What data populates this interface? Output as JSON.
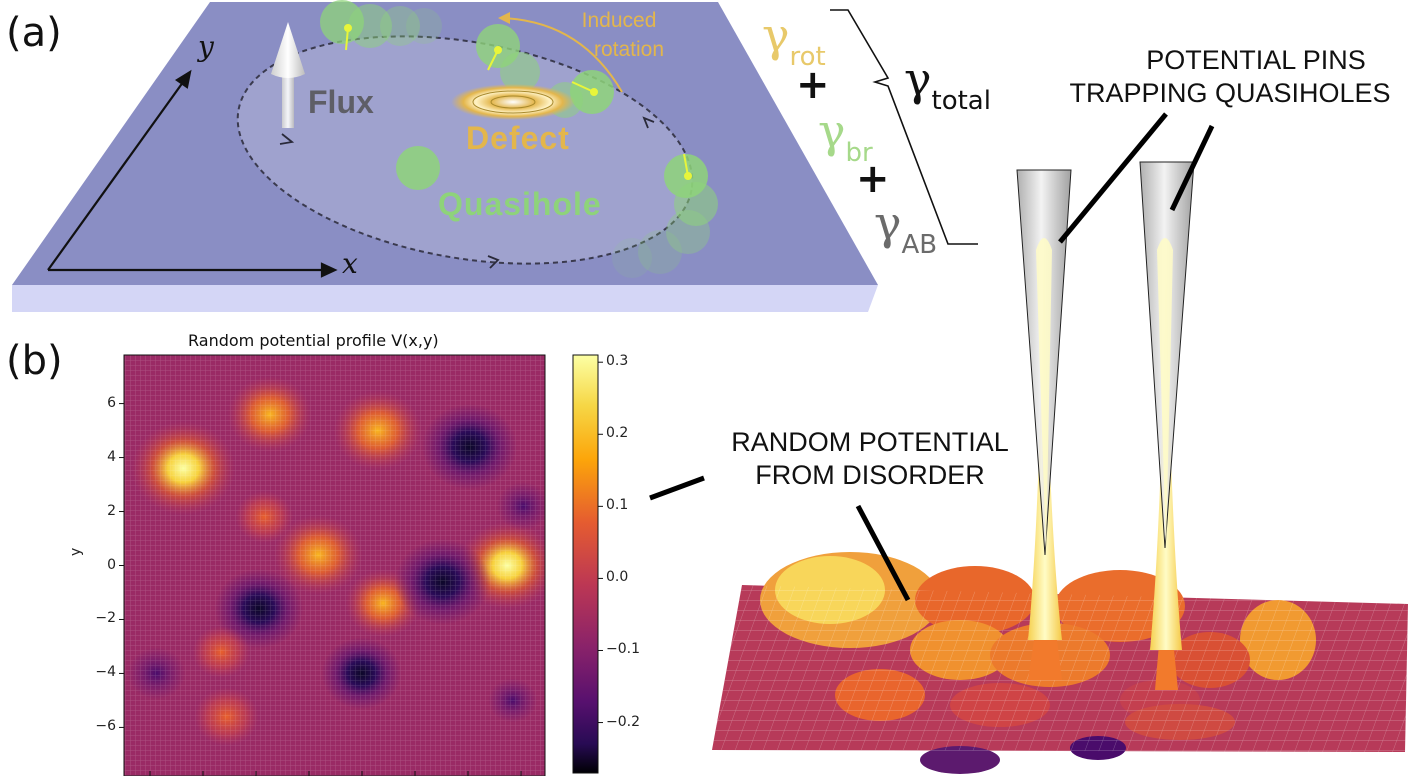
{
  "panel_a": {
    "label": "(a)",
    "axis_x": "x",
    "axis_y": "y",
    "flux_label": "Flux",
    "defect_label": "Defect",
    "quasihole_label": "Quasihole",
    "induced_rotation_line1": "Induced",
    "induced_rotation_line2": "rotation",
    "gamma_rot": "rot",
    "gamma_br": "br",
    "gamma_ab": "AB",
    "gamma_total": "total",
    "gamma_symbol": "γ",
    "plus": "+",
    "colors": {
      "plane": "#8a8ec4",
      "plane_edge": "#d4d6f6",
      "rot": "#e8c96a",
      "br": "#a6d98a",
      "ab": "#6b6b6b",
      "quasihole": "#8ed37a",
      "defect": "#e3b64c"
    }
  },
  "panel_b": {
    "label": "(b)",
    "title": "Random potential profile V(x,y)",
    "ylabel": "y",
    "colorbar_ticks": [
      "0.3",
      "0.2",
      "0.1",
      "0.0",
      "−0.1",
      "−0.2"
    ],
    "colormap": "inferno"
  },
  "annotations": {
    "pins_line1": "POTENTIAL PINS",
    "pins_line2": "TRAPPING QUASIHOLES",
    "random_line1": "RANDOM POTENTIAL",
    "random_line2": "FROM DISORDER"
  },
  "chart_data": {
    "type": "heatmap",
    "title": "Random potential profile V(x,y)",
    "xlabel": "",
    "ylabel": "y",
    "ylim": [
      -7.8,
      7.8
    ],
    "yticks": [
      6,
      4,
      2,
      0,
      -2,
      -4,
      -6
    ],
    "colorbar_range": [
      -0.27,
      0.31
    ],
    "colorbar_ticks": [
      0.3,
      0.2,
      0.1,
      0.0,
      -0.1,
      -0.2
    ],
    "features": [
      {
        "x": -5.6,
        "y": 3.6,
        "value": 0.31
      },
      {
        "x": -2.4,
        "y": 5.6,
        "value": 0.22
      },
      {
        "x": 1.6,
        "y": 5.0,
        "value": 0.24
      },
      {
        "x": 5.0,
        "y": 4.4,
        "value": -0.27
      },
      {
        "x": -0.6,
        "y": 0.4,
        "value": 0.24
      },
      {
        "x": 6.4,
        "y": 0.0,
        "value": 0.28
      },
      {
        "x": 1.8,
        "y": -1.4,
        "value": 0.18
      },
      {
        "x": 4.0,
        "y": -0.6,
        "value": -0.27
      },
      {
        "x": -2.8,
        "y": -1.6,
        "value": -0.24
      },
      {
        "x": 1.0,
        "y": -4.0,
        "value": -0.2
      },
      {
        "x": -4.0,
        "y": -5.6,
        "value": 0.13
      },
      {
        "x": -2.6,
        "y": 1.8,
        "value": 0.1
      },
      {
        "x": -4.2,
        "y": -3.2,
        "value": 0.1
      },
      {
        "x": -6.6,
        "y": -4.0,
        "value": -0.1
      },
      {
        "x": 6.6,
        "y": -5.0,
        "value": -0.06
      },
      {
        "x": 7.0,
        "y": 2.2,
        "value": -0.08
      }
    ]
  }
}
